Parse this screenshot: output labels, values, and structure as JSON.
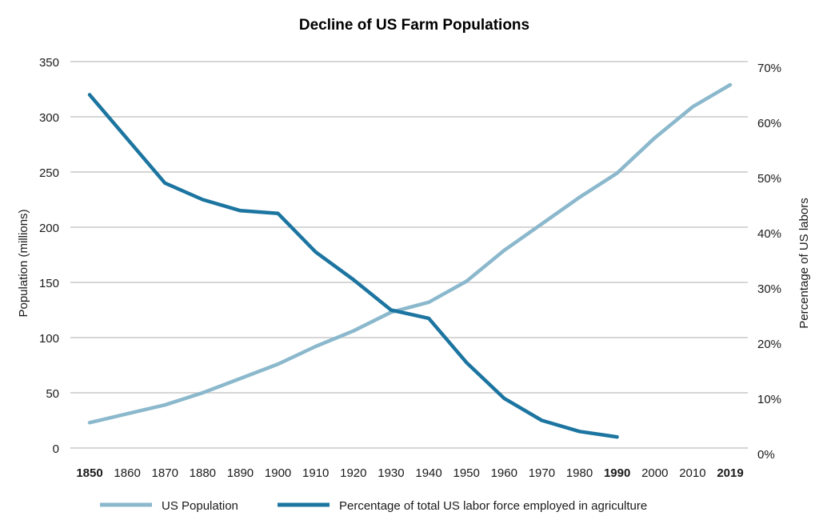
{
  "chart_data": {
    "type": "line",
    "title": "Decline of US Farm Populations",
    "ylabel": "Population (millions)",
    "y2label": "Percentage of US labors",
    "ylim": [
      0,
      350
    ],
    "y2lim": [
      0,
      70
    ],
    "yticks": [
      "0",
      "50",
      "100",
      "150",
      "200",
      "250",
      "300",
      "350"
    ],
    "y2ticks": [
      "0%",
      "10%",
      "20%",
      "30%",
      "40%",
      "50%",
      "60%",
      "70%"
    ],
    "x": [
      "1850",
      "1860",
      "1870",
      "1880",
      "1890",
      "1900",
      "1910",
      "1920",
      "1930",
      "1940",
      "1950",
      "1960",
      "1970",
      "1980",
      "1990",
      "2000",
      "2010",
      "2019"
    ],
    "bold_x": [
      "1850",
      "1990",
      "2019"
    ],
    "grid": "horizontal",
    "legend_position": "bottom",
    "series": [
      {
        "name": "US Population",
        "axis": "left",
        "color": "#8bb8cc",
        "values": [
          23,
          31,
          39,
          50,
          63,
          76,
          92,
          106,
          123,
          132,
          151,
          179,
          203,
          227,
          249,
          281,
          309,
          329
        ]
      },
      {
        "name": "Percentage of total US labor force employed in agriculture",
        "axis": "right",
        "color": "#1c75a0",
        "values": [
          64,
          56,
          48,
          45,
          43,
          42.5,
          35.5,
          30.5,
          25,
          23.5,
          15.5,
          9,
          5,
          3,
          2,
          null,
          null,
          null
        ]
      }
    ]
  }
}
